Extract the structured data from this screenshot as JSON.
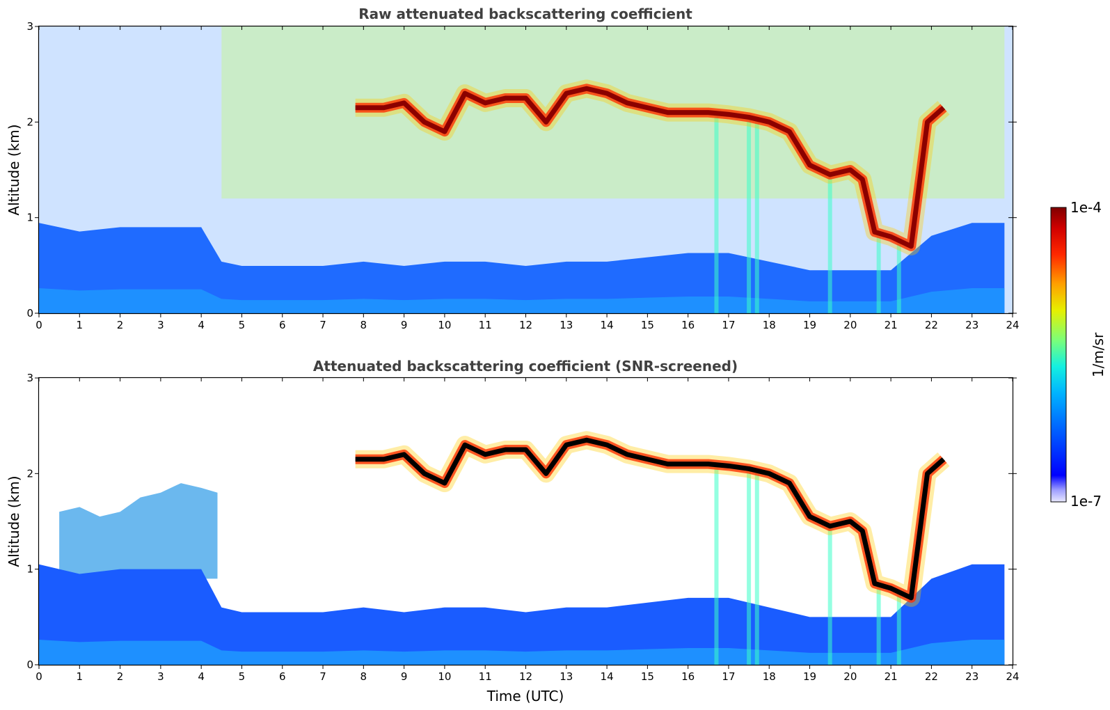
{
  "chart_data": [
    {
      "type": "heatmap",
      "title": "Raw attenuated backscattering coefficient",
      "xlabel": "",
      "ylabel": "Altitude (km)",
      "xlim": [
        0,
        24
      ],
      "ylim": [
        0,
        3
      ],
      "x_ticks": [
        "0",
        "1",
        "2",
        "3",
        "4",
        "5",
        "6",
        "7",
        "8",
        "9",
        "10",
        "11",
        "12",
        "13",
        "14",
        "15",
        "16",
        "17",
        "18",
        "19",
        "20",
        "21",
        "22",
        "23",
        "24"
      ],
      "y_ticks": [
        "0",
        "1",
        "2",
        "3"
      ],
      "z_units": "1/m/sr",
      "z_range": [
        1e-07,
        0.0001
      ],
      "z_scale": "log",
      "features": {
        "cloud_layer": {
          "time_utc": [
            7.8,
            8.5,
            9.0,
            9.5,
            10.0,
            10.5,
            11.0,
            11.5,
            12.0,
            12.5,
            13.0,
            13.5,
            14.0,
            14.5,
            15.0,
            15.5,
            16.0,
            16.5,
            17.0,
            17.5,
            18.0,
            18.5,
            19.0,
            19.5,
            20.0,
            20.3,
            20.6,
            21.0,
            21.5,
            21.9,
            22.3
          ],
          "altitude_km": [
            2.15,
            2.15,
            2.2,
            2.0,
            1.9,
            2.3,
            2.2,
            2.25,
            2.25,
            2.0,
            2.3,
            2.35,
            2.3,
            2.2,
            2.15,
            2.1,
            2.1,
            2.1,
            2.08,
            2.05,
            2.0,
            1.9,
            1.55,
            1.45,
            1.5,
            1.4,
            0.85,
            0.8,
            0.7,
            2.0,
            2.15
          ]
        },
        "boundary_layer_top_km": {
          "time_utc": [
            0,
            1,
            2,
            3,
            4,
            4.5,
            5,
            6,
            7,
            8,
            9,
            10,
            11,
            12,
            13,
            14,
            15,
            16,
            17,
            18,
            19,
            20,
            21,
            22,
            23,
            23.8
          ],
          "altitude_km": [
            1.05,
            0.95,
            1.0,
            1.0,
            1.0,
            0.6,
            0.55,
            0.55,
            0.55,
            0.6,
            0.55,
            0.6,
            0.6,
            0.55,
            0.6,
            0.6,
            0.65,
            0.7,
            0.7,
            0.6,
            0.5,
            0.5,
            0.5,
            0.9,
            1.05,
            1.05
          ]
        }
      }
    },
    {
      "type": "heatmap",
      "title": "Attenuated backscattering coefficient (SNR-screened)",
      "xlabel": "Time (UTC)",
      "ylabel": "Altitude (km)",
      "xlim": [
        0,
        24
      ],
      "ylim": [
        0,
        3
      ],
      "x_ticks": [
        "0",
        "1",
        "2",
        "3",
        "4",
        "5",
        "6",
        "7",
        "8",
        "9",
        "10",
        "11",
        "12",
        "13",
        "14",
        "15",
        "16",
        "17",
        "18",
        "19",
        "20",
        "21",
        "22",
        "23",
        "24"
      ],
      "y_ticks": [
        "0",
        "1",
        "2",
        "3"
      ],
      "z_units": "1/m/sr",
      "z_range": [
        1e-07,
        0.0001
      ],
      "z_scale": "log",
      "features": {
        "aerosol_layer_top_km": {
          "time_utc": [
            0.5,
            1.0,
            1.5,
            2.0,
            2.5,
            3.0,
            3.5,
            4.0,
            4.4
          ],
          "altitude_km": [
            1.6,
            1.65,
            1.55,
            1.6,
            1.75,
            1.8,
            1.9,
            1.85,
            1.8
          ]
        }
      }
    }
  ],
  "colorbar": {
    "label": "1/m/sr",
    "max_label": "1e-4",
    "min_label": "1e-7",
    "colormap": "jet",
    "colors": [
      "#e6e6ff",
      "#0000ff",
      "#0080ff",
      "#00c8ff",
      "#40ffb0",
      "#a0ff60",
      "#ffff00",
      "#ff8000",
      "#ff0000",
      "#7f0000"
    ]
  },
  "masked_color": "#ffffff",
  "saturated_color": "#000000"
}
